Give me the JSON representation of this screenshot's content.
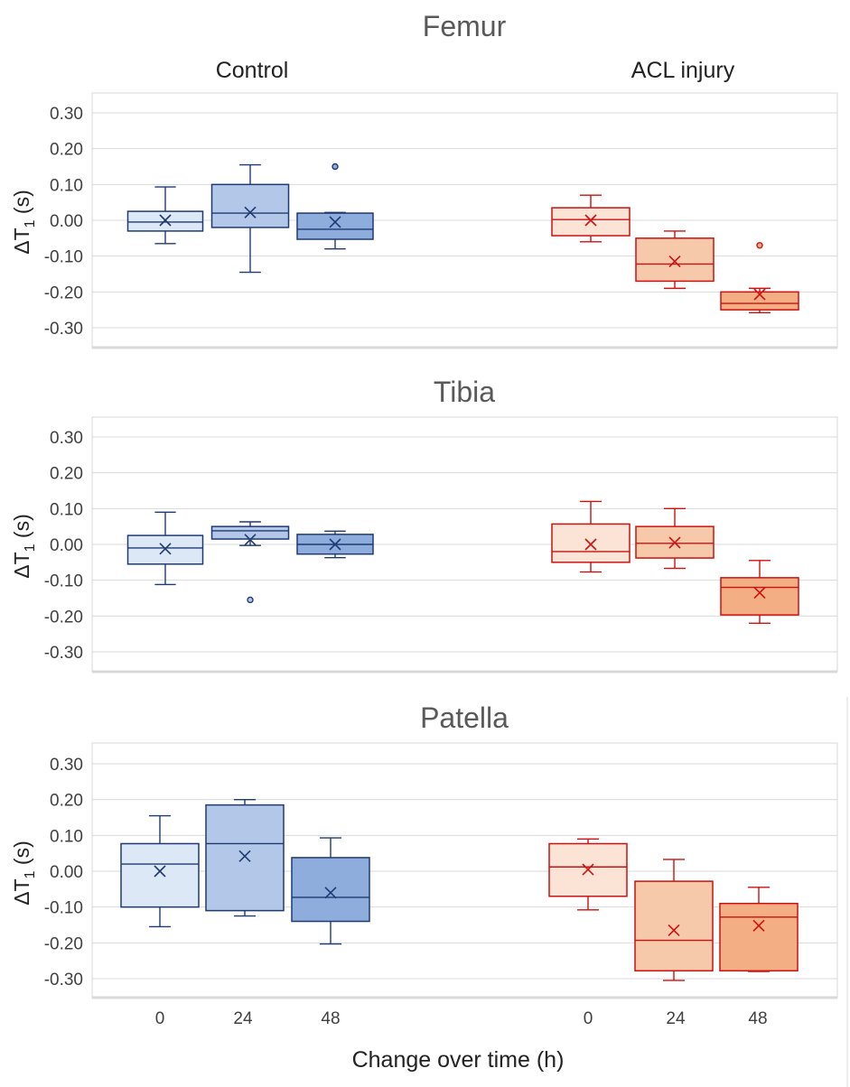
{
  "chart_data": {
    "type": "box",
    "x_title": "Change over time (h)",
    "group_labels": [
      "Control",
      "ACL injury"
    ],
    "time_labels": [
      "0",
      "24",
      "48"
    ],
    "y_ticks": [
      "0.30",
      "0.20",
      "0.10",
      "0.00",
      "-0.10",
      "-0.20",
      "-0.30"
    ],
    "ylim": [
      -0.35,
      0.35
    ],
    "y_label_main": "ΔT",
    "y_label_sub": "1",
    "y_label_unit": " (s)",
    "outlier_color": "#ff4444",
    "colors": {
      "control_stroke": "#1f3a72",
      "control_fills": [
        "#dce8f6",
        "#b3c8e8",
        "#8eacdc"
      ],
      "acl_stroke": "#cc1111",
      "acl_fills": [
        "#fbe4d6",
        "#f7c9ab",
        "#f3ae83"
      ]
    },
    "panels": [
      {
        "title": "Femur",
        "control": [
          {
            "time": "0",
            "min": -0.065,
            "q1": -0.03,
            "median": -0.005,
            "q3": 0.025,
            "max": 0.093,
            "mean": 0.0,
            "outliers": []
          },
          {
            "time": "24",
            "min": -0.145,
            "q1": -0.02,
            "median": 0.02,
            "q3": 0.1,
            "max": 0.155,
            "mean": 0.022,
            "outliers": []
          },
          {
            "time": "48",
            "min": -0.08,
            "q1": -0.053,
            "median": -0.025,
            "q3": 0.02,
            "max": 0.022,
            "mean": -0.005,
            "outliers": [
              0.15
            ]
          }
        ],
        "acl": [
          {
            "time": "0",
            "min": -0.06,
            "q1": -0.043,
            "median": 0.002,
            "q3": 0.035,
            "max": 0.07,
            "mean": 0.0,
            "outliers": []
          },
          {
            "time": "24",
            "min": -0.19,
            "q1": -0.17,
            "median": -0.122,
            "q3": -0.05,
            "max": -0.03,
            "mean": -0.115,
            "outliers": []
          },
          {
            "time": "48",
            "min": -0.258,
            "q1": -0.25,
            "median": -0.232,
            "q3": -0.2,
            "max": -0.19,
            "mean": -0.207,
            "outliers": [
              -0.07
            ]
          }
        ]
      },
      {
        "title": "Tibia",
        "control": [
          {
            "time": "0",
            "min": -0.112,
            "q1": -0.055,
            "median": -0.01,
            "q3": 0.025,
            "max": 0.09,
            "mean": -0.012,
            "outliers": []
          },
          {
            "time": "24",
            "min": -0.003,
            "q1": 0.015,
            "median": 0.038,
            "q3": 0.05,
            "max": 0.063,
            "mean": 0.013,
            "outliers": [
              -0.155
            ]
          },
          {
            "time": "48",
            "min": -0.037,
            "q1": -0.027,
            "median": 0.0,
            "q3": 0.028,
            "max": 0.037,
            "mean": 0.0,
            "outliers": []
          }
        ],
        "acl": [
          {
            "time": "0",
            "min": -0.077,
            "q1": -0.05,
            "median": -0.02,
            "q3": 0.057,
            "max": 0.12,
            "mean": 0.0,
            "outliers": []
          },
          {
            "time": "24",
            "min": -0.067,
            "q1": -0.038,
            "median": 0.003,
            "q3": 0.05,
            "max": 0.1,
            "mean": 0.005,
            "outliers": []
          },
          {
            "time": "48",
            "min": -0.22,
            "q1": -0.197,
            "median": -0.12,
            "q3": -0.093,
            "max": -0.045,
            "mean": -0.135,
            "outliers": []
          }
        ]
      },
      {
        "title": "Patella",
        "control": [
          {
            "time": "0",
            "min": -0.155,
            "q1": -0.1,
            "median": 0.02,
            "q3": 0.077,
            "max": 0.155,
            "mean": 0.0,
            "outliers": []
          },
          {
            "time": "24",
            "min": -0.125,
            "q1": -0.11,
            "median": 0.077,
            "q3": 0.185,
            "max": 0.2,
            "mean": 0.042,
            "outliers": []
          },
          {
            "time": "48",
            "min": -0.203,
            "q1": -0.14,
            "median": -0.073,
            "q3": 0.038,
            "max": 0.093,
            "mean": -0.06,
            "outliers": []
          }
        ],
        "acl": [
          {
            "time": "0",
            "min": -0.108,
            "q1": -0.07,
            "median": 0.012,
            "q3": 0.077,
            "max": 0.09,
            "mean": 0.005,
            "outliers": []
          },
          {
            "time": "24",
            "min": -0.305,
            "q1": -0.278,
            "median": -0.193,
            "q3": -0.028,
            "max": 0.033,
            "mean": -0.165,
            "outliers": []
          },
          {
            "time": "48",
            "min": -0.28,
            "q1": -0.278,
            "median": -0.128,
            "q3": -0.09,
            "max": -0.045,
            "mean": -0.152,
            "outliers": []
          }
        ]
      }
    ]
  }
}
